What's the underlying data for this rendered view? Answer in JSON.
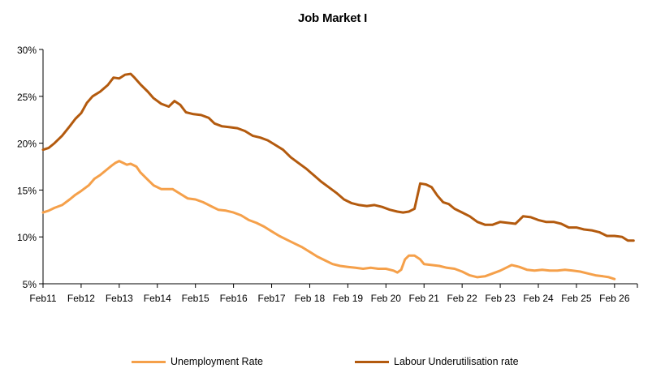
{
  "chart_data": {
    "type": "line",
    "title": "Job Market  I",
    "xlabel": "",
    "ylabel": "",
    "x_start_year": 2011,
    "ylim": [
      5,
      30
    ],
    "y_ticks": [
      5,
      10,
      15,
      20,
      25,
      30
    ],
    "y_tick_labels": [
      "5%",
      "10%",
      "15%",
      "20%",
      "25%",
      "30%"
    ],
    "x_tick_labels": [
      "Feb11",
      "Feb12",
      "Feb13",
      "Feb14",
      "Feb15",
      "Feb16",
      "Feb17",
      "Feb 18",
      "Feb 19",
      "Feb 20",
      "Feb 21",
      "Feb 22",
      "Feb 23",
      "Feb 24",
      "Feb 25",
      "Feb 26"
    ],
    "grid": false,
    "legend_position": "bottom",
    "series": [
      {
        "name": "Unemployment Rate",
        "color": "#F5A04A",
        "points": [
          [
            0,
            12.6
          ],
          [
            0.15,
            12.8
          ],
          [
            0.3,
            13.1
          ],
          [
            0.5,
            13.4
          ],
          [
            0.7,
            14.0
          ],
          [
            0.85,
            14.5
          ],
          [
            1.0,
            14.9
          ],
          [
            1.2,
            15.5
          ],
          [
            1.35,
            16.2
          ],
          [
            1.5,
            16.6
          ],
          [
            1.65,
            17.1
          ],
          [
            1.8,
            17.6
          ],
          [
            1.9,
            17.9
          ],
          [
            2.0,
            18.1
          ],
          [
            2.1,
            17.9
          ],
          [
            2.2,
            17.7
          ],
          [
            2.3,
            17.8
          ],
          [
            2.45,
            17.5
          ],
          [
            2.55,
            16.9
          ],
          [
            2.75,
            16.1
          ],
          [
            2.9,
            15.5
          ],
          [
            3.1,
            15.1
          ],
          [
            3.4,
            15.1
          ],
          [
            3.6,
            14.6
          ],
          [
            3.8,
            14.1
          ],
          [
            4.0,
            14.0
          ],
          [
            4.2,
            13.7
          ],
          [
            4.4,
            13.3
          ],
          [
            4.6,
            12.9
          ],
          [
            4.8,
            12.8
          ],
          [
            5.0,
            12.6
          ],
          [
            5.2,
            12.3
          ],
          [
            5.4,
            11.8
          ],
          [
            5.6,
            11.5
          ],
          [
            5.8,
            11.1
          ],
          [
            6.0,
            10.6
          ],
          [
            6.2,
            10.1
          ],
          [
            6.4,
            9.7
          ],
          [
            6.6,
            9.3
          ],
          [
            6.8,
            8.9
          ],
          [
            7.0,
            8.4
          ],
          [
            7.2,
            7.9
          ],
          [
            7.4,
            7.5
          ],
          [
            7.6,
            7.1
          ],
          [
            7.8,
            6.9
          ],
          [
            8.0,
            6.8
          ],
          [
            8.2,
            6.7
          ],
          [
            8.4,
            6.6
          ],
          [
            8.6,
            6.7
          ],
          [
            8.8,
            6.6
          ],
          [
            9.0,
            6.6
          ],
          [
            9.2,
            6.4
          ],
          [
            9.3,
            6.2
          ],
          [
            9.4,
            6.5
          ],
          [
            9.5,
            7.6
          ],
          [
            9.6,
            8.0
          ],
          [
            9.75,
            8.0
          ],
          [
            9.9,
            7.6
          ],
          [
            10.0,
            7.1
          ],
          [
            10.2,
            7.0
          ],
          [
            10.4,
            6.9
          ],
          [
            10.6,
            6.7
          ],
          [
            10.8,
            6.6
          ],
          [
            11.0,
            6.3
          ],
          [
            11.2,
            5.9
          ],
          [
            11.4,
            5.7
          ],
          [
            11.6,
            5.8
          ],
          [
            11.8,
            6.1
          ],
          [
            12.0,
            6.4
          ],
          [
            12.2,
            6.8
          ],
          [
            12.3,
            7.0
          ],
          [
            12.5,
            6.8
          ],
          [
            12.7,
            6.5
          ],
          [
            12.9,
            6.4
          ],
          [
            13.1,
            6.5
          ],
          [
            13.3,
            6.4
          ],
          [
            13.5,
            6.4
          ],
          [
            13.7,
            6.5
          ],
          [
            13.9,
            6.4
          ],
          [
            14.1,
            6.3
          ],
          [
            14.3,
            6.1
          ],
          [
            14.5,
            5.9
          ],
          [
            14.7,
            5.8
          ],
          [
            14.85,
            5.7
          ],
          [
            15.0,
            5.5
          ]
        ]
      },
      {
        "name": "Labour Underutilisation rate",
        "color": "#B35A0E",
        "points": [
          [
            0,
            19.3
          ],
          [
            0.15,
            19.5
          ],
          [
            0.3,
            20.0
          ],
          [
            0.5,
            20.8
          ],
          [
            0.7,
            21.8
          ],
          [
            0.85,
            22.6
          ],
          [
            1.0,
            23.2
          ],
          [
            1.15,
            24.3
          ],
          [
            1.3,
            25.0
          ],
          [
            1.5,
            25.5
          ],
          [
            1.7,
            26.2
          ],
          [
            1.85,
            27.0
          ],
          [
            2.0,
            26.9
          ],
          [
            2.15,
            27.3
          ],
          [
            2.3,
            27.4
          ],
          [
            2.4,
            27.0
          ],
          [
            2.55,
            26.3
          ],
          [
            2.75,
            25.5
          ],
          [
            2.9,
            24.8
          ],
          [
            3.1,
            24.2
          ],
          [
            3.3,
            23.9
          ],
          [
            3.45,
            24.5
          ],
          [
            3.6,
            24.1
          ],
          [
            3.75,
            23.3
          ],
          [
            3.95,
            23.1
          ],
          [
            4.15,
            23.0
          ],
          [
            4.35,
            22.7
          ],
          [
            4.5,
            22.1
          ],
          [
            4.7,
            21.8
          ],
          [
            4.9,
            21.7
          ],
          [
            5.1,
            21.6
          ],
          [
            5.3,
            21.3
          ],
          [
            5.5,
            20.8
          ],
          [
            5.7,
            20.6
          ],
          [
            5.9,
            20.3
          ],
          [
            6.1,
            19.8
          ],
          [
            6.3,
            19.3
          ],
          [
            6.5,
            18.5
          ],
          [
            6.7,
            17.9
          ],
          [
            6.9,
            17.3
          ],
          [
            7.1,
            16.6
          ],
          [
            7.3,
            15.9
          ],
          [
            7.5,
            15.3
          ],
          [
            7.7,
            14.7
          ],
          [
            7.9,
            14.0
          ],
          [
            8.1,
            13.6
          ],
          [
            8.3,
            13.4
          ],
          [
            8.5,
            13.3
          ],
          [
            8.7,
            13.4
          ],
          [
            8.9,
            13.2
          ],
          [
            9.1,
            12.9
          ],
          [
            9.3,
            12.7
          ],
          [
            9.45,
            12.6
          ],
          [
            9.6,
            12.7
          ],
          [
            9.75,
            13.0
          ],
          [
            9.9,
            15.7
          ],
          [
            10.05,
            15.6
          ],
          [
            10.2,
            15.3
          ],
          [
            10.35,
            14.4
          ],
          [
            10.5,
            13.7
          ],
          [
            10.65,
            13.5
          ],
          [
            10.8,
            13.0
          ],
          [
            11.0,
            12.6
          ],
          [
            11.2,
            12.2
          ],
          [
            11.4,
            11.6
          ],
          [
            11.6,
            11.3
          ],
          [
            11.8,
            11.3
          ],
          [
            12.0,
            11.6
          ],
          [
            12.2,
            11.5
          ],
          [
            12.4,
            11.4
          ],
          [
            12.6,
            12.2
          ],
          [
            12.8,
            12.1
          ],
          [
            13.0,
            11.8
          ],
          [
            13.2,
            11.6
          ],
          [
            13.4,
            11.6
          ],
          [
            13.6,
            11.4
          ],
          [
            13.8,
            11.0
          ],
          [
            14.0,
            11.0
          ],
          [
            14.2,
            10.8
          ],
          [
            14.4,
            10.7
          ],
          [
            14.6,
            10.5
          ],
          [
            14.8,
            10.1
          ],
          [
            15.0,
            10.1
          ],
          [
            15.2,
            10.0
          ],
          [
            15.35,
            9.6
          ],
          [
            15.5,
            9.6
          ]
        ]
      }
    ]
  }
}
